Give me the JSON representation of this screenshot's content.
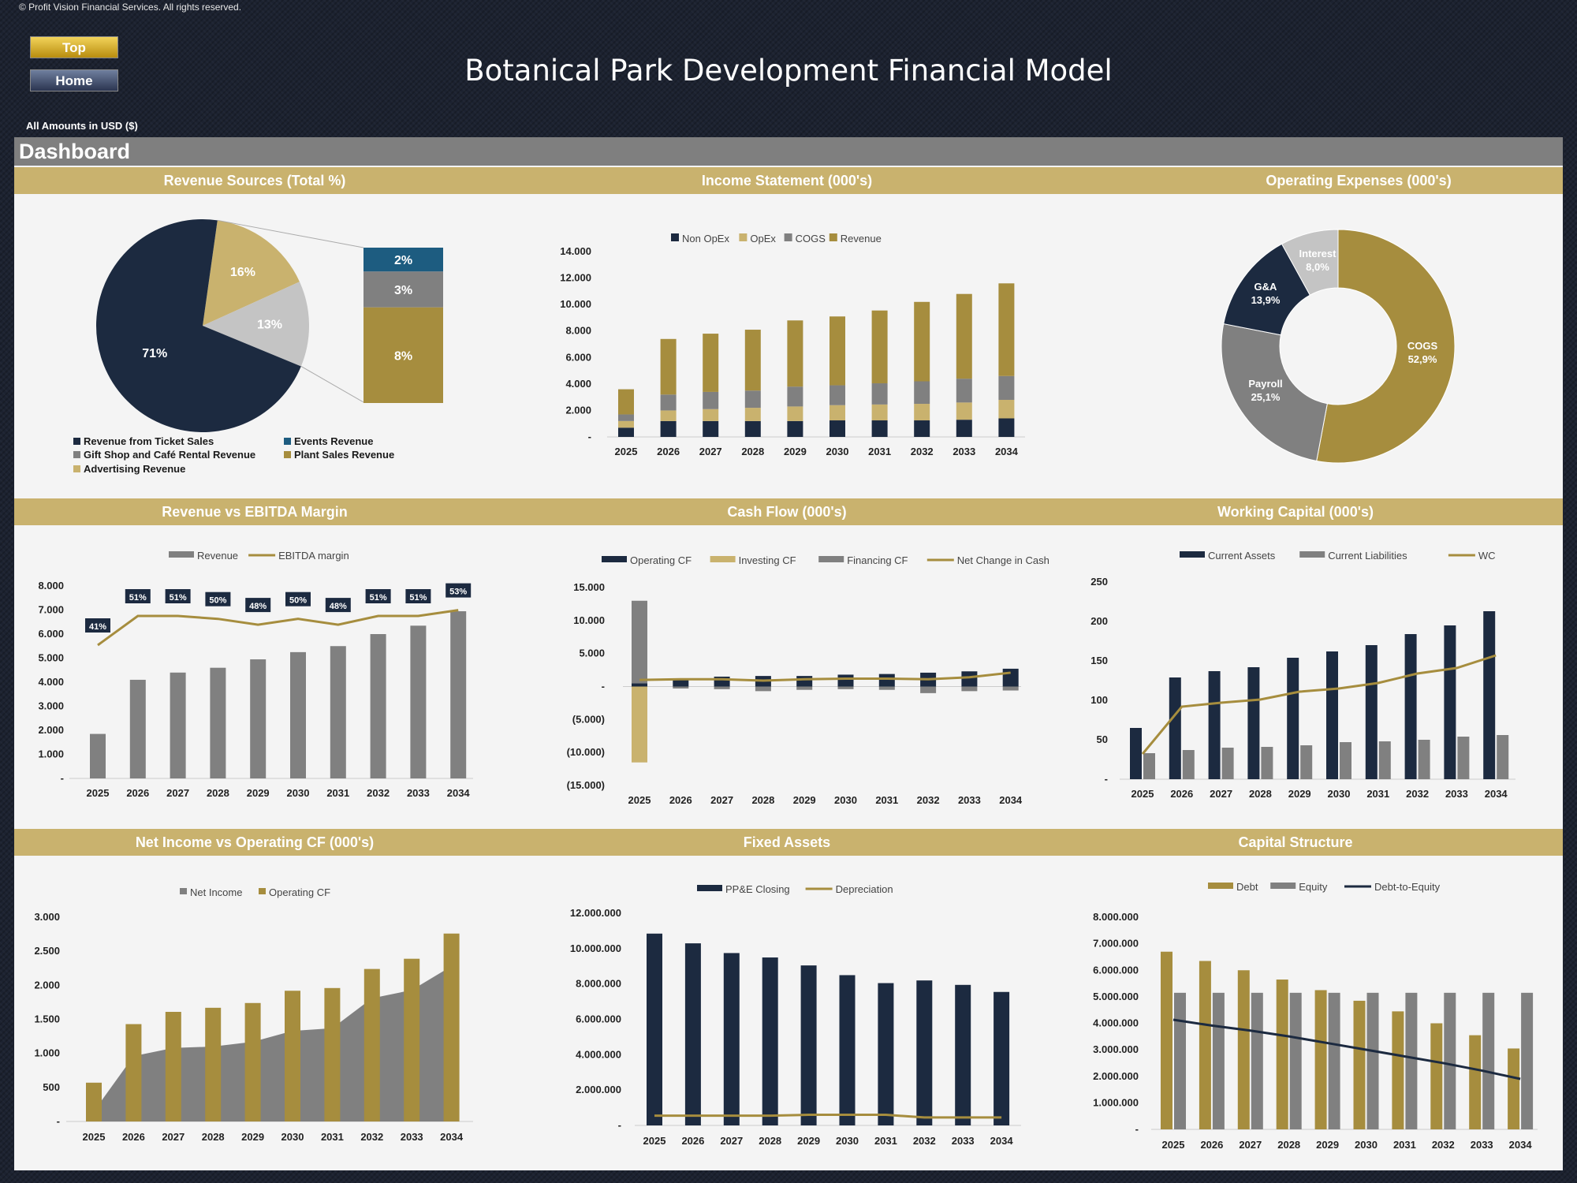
{
  "header": {
    "copyright": "© Profit Vision Financial Services. All rights reserved.",
    "top_button": "Top",
    "home_button": "Home",
    "title": "Botanical Park Development Financial Model",
    "amounts_note": "All Amounts in  USD ($)",
    "dashboard_label": "Dashboard"
  },
  "sections": {
    "revenue_sources": "Revenue Sources (Total %)",
    "income_statement": "Income Statement (000's)",
    "operating_expenses": "Operating Expenses (000's)",
    "revenue_ebitda": "Revenue vs EBITDA Margin",
    "cash_flow": "Cash Flow (000's)",
    "working_capital": "Working Capital (000's)",
    "net_income_cf": "Net Income vs Operating CF (000's)",
    "fixed_assets": "Fixed Assets",
    "capital_structure": "Capital Structure"
  },
  "colors": {
    "navy": "#1c2a40",
    "gold": "#a68d3e",
    "lightgold": "#c9b26e",
    "gray": "#808080",
    "lightgray": "#c4c4c4",
    "blue": "#1d5c80"
  },
  "chart_data": [
    {
      "id": "revenue_sources",
      "type": "pie",
      "main_slices": [
        {
          "label": "71%",
          "value": 71,
          "color": "#1c2a40"
        },
        {
          "label": "16%",
          "value": 16,
          "color": "#c9b26e"
        },
        {
          "label": "13%",
          "value": 13,
          "color": "#c4c4c4"
        }
      ],
      "breakout": [
        {
          "label": "2%",
          "value": 2,
          "color": "#1d5c80"
        },
        {
          "label": "3%",
          "value": 3,
          "color": "#808080"
        },
        {
          "label": "8%",
          "value": 8,
          "color": "#a68d3e"
        }
      ],
      "legend": [
        {
          "label": "Revenue from Ticket Sales",
          "color": "#1c2a40"
        },
        {
          "label": "Events Revenue",
          "color": "#1d5c80"
        },
        {
          "label": "Gift Shop and Café Rental Revenue",
          "color": "#808080"
        },
        {
          "label": "Plant Sales Revenue",
          "color": "#a68d3e"
        },
        {
          "label": "Advertising Revenue",
          "color": "#c9b26e"
        }
      ]
    },
    {
      "id": "income_statement",
      "type": "bar",
      "stacked": true,
      "categories": [
        "2025",
        "2026",
        "2027",
        "2028",
        "2029",
        "2030",
        "2031",
        "2032",
        "2033",
        "2034"
      ],
      "series": [
        {
          "name": "Non OpEx",
          "color": "#1c2a40",
          "values": [
            700,
            1200,
            1200,
            1200,
            1200,
            1250,
            1250,
            1250,
            1300,
            1400
          ]
        },
        {
          "name": "OpEx",
          "color": "#c9b26e",
          "values": [
            500,
            800,
            900,
            1000,
            1100,
            1150,
            1200,
            1250,
            1300,
            1400
          ]
        },
        {
          "name": "COGS",
          "color": "#808080",
          "values": [
            500,
            1200,
            1300,
            1300,
            1500,
            1500,
            1600,
            1700,
            1800,
            1800
          ]
        },
        {
          "name": "Revenue",
          "color": "#a68d3e",
          "values": [
            1900,
            4200,
            4400,
            4600,
            5000,
            5200,
            5500,
            6000,
            6400,
            7000
          ]
        }
      ],
      "yticks": [
        "14.000",
        "12.000",
        "10.000",
        "8.000",
        "6.000",
        "4.000",
        "2.000",
        "-"
      ],
      "ylim": [
        0,
        14000
      ]
    },
    {
      "id": "operating_expenses",
      "type": "pie",
      "donut": true,
      "slices": [
        {
          "name": "COGS",
          "pct": "52,9%",
          "value": 52.9,
          "color": "#a68d3e"
        },
        {
          "name": "Payroll",
          "pct": "25,1%",
          "value": 25.1,
          "color": "#808080"
        },
        {
          "name": "G&A",
          "pct": "13,9%",
          "value": 13.9,
          "color": "#1c2a40"
        },
        {
          "name": "Interest",
          "pct": "8,0%",
          "value": 8.0,
          "color": "#c4c4c4"
        }
      ]
    },
    {
      "id": "revenue_ebitda",
      "type": "bar",
      "categories": [
        "2025",
        "2026",
        "2027",
        "2028",
        "2029",
        "2030",
        "2031",
        "2032",
        "2033",
        "2034"
      ],
      "series": [
        {
          "name": "Revenue",
          "color": "#808080",
          "values": [
            1850,
            4100,
            4400,
            4600,
            4950,
            5250,
            5500,
            6000,
            6350,
            6950
          ]
        },
        {
          "name": "EBITDA margin",
          "color": "#a68d3e",
          "values": [
            41,
            51,
            51,
            50,
            48,
            50,
            48,
            51,
            51,
            53
          ]
        }
      ],
      "margin_labels": [
        "41%",
        "51%",
        "51%",
        "50%",
        "48%",
        "50%",
        "48%",
        "51%",
        "51%",
        "53%"
      ],
      "yticks": [
        "8.000",
        "7.000",
        "6.000",
        "5.000",
        "4.000",
        "3.000",
        "2.000",
        "1.000",
        "-"
      ],
      "ylim": [
        0,
        8000
      ]
    },
    {
      "id": "cash_flow",
      "type": "bar",
      "categories": [
        "2025",
        "2026",
        "2027",
        "2028",
        "2029",
        "2030",
        "2031",
        "2032",
        "2033",
        "2034"
      ],
      "series": [
        {
          "name": "Operating CF",
          "color": "#1c2a40",
          "values": [
            500,
            1200,
            1500,
            1600,
            1600,
            1800,
            1900,
            2100,
            2300,
            2700
          ]
        },
        {
          "name": "Investing CF",
          "color": "#c9b26e",
          "values": [
            -11500,
            0,
            0,
            0,
            0,
            0,
            0,
            0,
            0,
            0
          ]
        },
        {
          "name": "Financing CF",
          "color": "#808080",
          "values": [
            12500,
            -300,
            -400,
            -700,
            -500,
            -400,
            -500,
            -1000,
            -700,
            -600
          ]
        },
        {
          "name": "Net Change in Cash",
          "color": "#a68d3e",
          "values": [
            1000,
            1100,
            1100,
            900,
            1100,
            1200,
            1200,
            1100,
            1400,
            2100
          ]
        }
      ],
      "yticks": [
        "15.000",
        "10.000",
        "5.000",
        "-",
        "(5.000)",
        "(10.000)",
        "(15.000)"
      ],
      "ylim": [
        -15000,
        15000
      ]
    },
    {
      "id": "working_capital",
      "type": "bar",
      "categories": [
        "2025",
        "2026",
        "2027",
        "2028",
        "2029",
        "2030",
        "2031",
        "2032",
        "2033",
        "2034"
      ],
      "series": [
        {
          "name": "Current Assets",
          "color": "#1c2a40",
          "values": [
            65,
            129,
            137,
            142,
            154,
            162,
            170,
            184,
            195,
            213
          ]
        },
        {
          "name": "Current Liabilities",
          "color": "#808080",
          "values": [
            33,
            37,
            40,
            41,
            43,
            47,
            48,
            50,
            54,
            56
          ]
        },
        {
          "name": "WC",
          "color": "#a68d3e",
          "values": [
            32,
            92,
            97,
            101,
            111,
            115,
            122,
            134,
            141,
            157
          ]
        }
      ],
      "yticks": [
        "250",
        "200",
        "150",
        "100",
        "50",
        "-"
      ],
      "ylim": [
        0,
        250
      ]
    },
    {
      "id": "net_income_cf",
      "type": "bar",
      "categories": [
        "2025",
        "2026",
        "2027",
        "2028",
        "2029",
        "2030",
        "2031",
        "2032",
        "2033",
        "2034"
      ],
      "series": [
        {
          "name": "Net Income",
          "color": "#808080",
          "values": [
            150,
            960,
            1080,
            1100,
            1170,
            1330,
            1370,
            1810,
            1930,
            2280
          ]
        },
        {
          "name": "Operating CF",
          "color": "#a68d3e",
          "values": [
            570,
            1430,
            1610,
            1670,
            1740,
            1920,
            1960,
            2240,
            2390,
            2760
          ]
        }
      ],
      "yticks": [
        "3.000",
        "2.500",
        "2.000",
        "1.500",
        "1.000",
        "500",
        "-"
      ],
      "ylim": [
        0,
        3000
      ]
    },
    {
      "id": "fixed_assets",
      "type": "bar",
      "categories": [
        "2025",
        "2026",
        "2027",
        "2028",
        "2029",
        "2030",
        "2031",
        "2032",
        "2033",
        "2034"
      ],
      "series": [
        {
          "name": "PP&E Closing",
          "color": "#1c2a40",
          "values": [
            10850000,
            10300000,
            9750000,
            9500000,
            9050000,
            8500000,
            8050000,
            8200000,
            7950000,
            7550000
          ]
        },
        {
          "name": "Depreciation",
          "color": "#a68d3e",
          "values": [
            550000,
            550000,
            550000,
            550000,
            600000,
            600000,
            600000,
            450000,
            450000,
            450000
          ]
        }
      ],
      "yticks": [
        "12.000.000",
        "10.000.000",
        "8.000.000",
        "6.000.000",
        "4.000.000",
        "2.000.000",
        "-"
      ],
      "ylim": [
        0,
        12000000
      ]
    },
    {
      "id": "capital_structure",
      "type": "bar",
      "categories": [
        "2025",
        "2026",
        "2027",
        "2028",
        "2029",
        "2030",
        "2031",
        "2032",
        "2033",
        "2034"
      ],
      "series": [
        {
          "name": "Debt",
          "color": "#a68d3e",
          "values": [
            6700000,
            6350000,
            6000000,
            5650000,
            5250000,
            4850000,
            4450000,
            4000000,
            3550000,
            3050000
          ]
        },
        {
          "name": "Equity",
          "color": "#808080",
          "values": [
            5150000,
            5150000,
            5150000,
            5150000,
            5150000,
            5150000,
            5150000,
            5150000,
            5150000,
            5150000
          ]
        },
        {
          "name": "Debt-to-Equity",
          "color": "#1c2a40",
          "values": [
            1.3,
            1.23,
            1.17,
            1.1,
            1.02,
            0.94,
            0.86,
            0.78,
            0.69,
            0.59
          ]
        }
      ],
      "yticks": [
        "8.000.000",
        "7.000.000",
        "6.000.000",
        "5.000.000",
        "4.000.000",
        "3.000.000",
        "2.000.000",
        "1.000.000",
        "-"
      ],
      "ylim": [
        0,
        8000000
      ]
    }
  ]
}
